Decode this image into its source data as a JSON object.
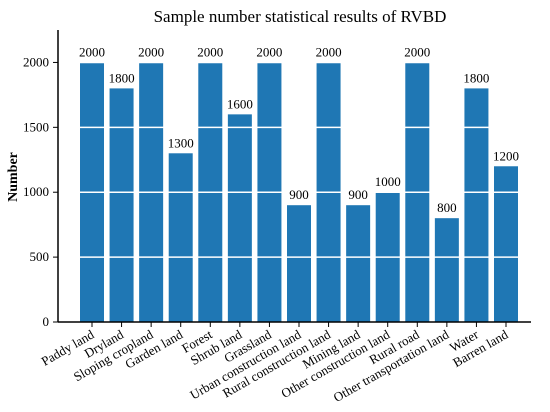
{
  "chart_data": {
    "type": "bar",
    "title": "Sample number statistical results of RVBD",
    "xlabel": "",
    "ylabel": "Number",
    "categories": [
      "Paddy land",
      "Dryland",
      "Sloping cropland",
      "Garden land",
      "Forest",
      "Shrub land",
      "Grassland",
      "Urban construction land",
      "Rural construction land",
      "Mining land",
      "Other construction land",
      "Rural road",
      "Other transportation land",
      "Water",
      "Barren land"
    ],
    "values": [
      2000,
      1800,
      2000,
      1300,
      2000,
      1600,
      2000,
      900,
      2000,
      900,
      1000,
      2000,
      800,
      1800,
      1200
    ],
    "data_labels": [
      "2000",
      "1800",
      "2000",
      "1300",
      "2000",
      "1600",
      "2000",
      "900",
      "2000",
      "900",
      "1000",
      "2000",
      "800",
      "1800",
      "1200"
    ],
    "ylim": [
      0,
      2250
    ],
    "yticks": [
      0,
      500,
      1000,
      1500,
      2000
    ],
    "ytick_labels": [
      "0",
      "500",
      "1000",
      "1500",
      "2000"
    ],
    "grid": "horizontal",
    "bar_color": "#1f77b4",
    "grid_color": "#ffffff",
    "axis_color": "#000000",
    "text_color": "#000000"
  }
}
